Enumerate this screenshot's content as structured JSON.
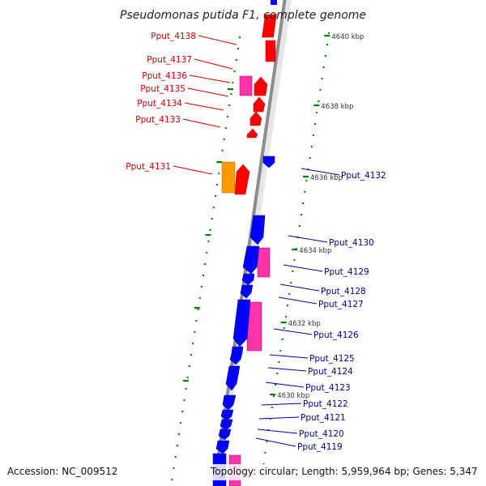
{
  "title": "Pseudomonas putida F1, complete genome",
  "footer": {
    "accession": "Accession: NC_009512",
    "topology": "Topology: circular; Length: 5,959,964 bp; Genes: 5,347"
  },
  "colors": {
    "forward_cds": "#ff0000",
    "reverse_cds": "#0000ff",
    "pink_feature": "#ff33aa",
    "orange_feature": "#ff9900",
    "forward_label": "#cc0000",
    "reverse_label": "#000099",
    "tick": "#008000"
  },
  "ticks": [
    "4640 kbp",
    "4638 kbp",
    "4636 kbp",
    "4634 kbp",
    "4632 kbp",
    "4630 kbp"
  ],
  "labels_left": [
    "Pput_4138",
    "Pput_4137",
    "Pput_4136",
    "Pput_4135",
    "Pput_4134",
    "Pput_4133",
    "Pput_4131"
  ],
  "labels_right": [
    "Pput_4132",
    "Pput_4130",
    "Pput_4129",
    "Pput_4128",
    "Pput_4127",
    "Pput_4126",
    "Pput_4125",
    "Pput_4124",
    "Pput_4123",
    "Pput_4122",
    "Pput_4121",
    "Pput_4120",
    "Pput_4119"
  ]
}
